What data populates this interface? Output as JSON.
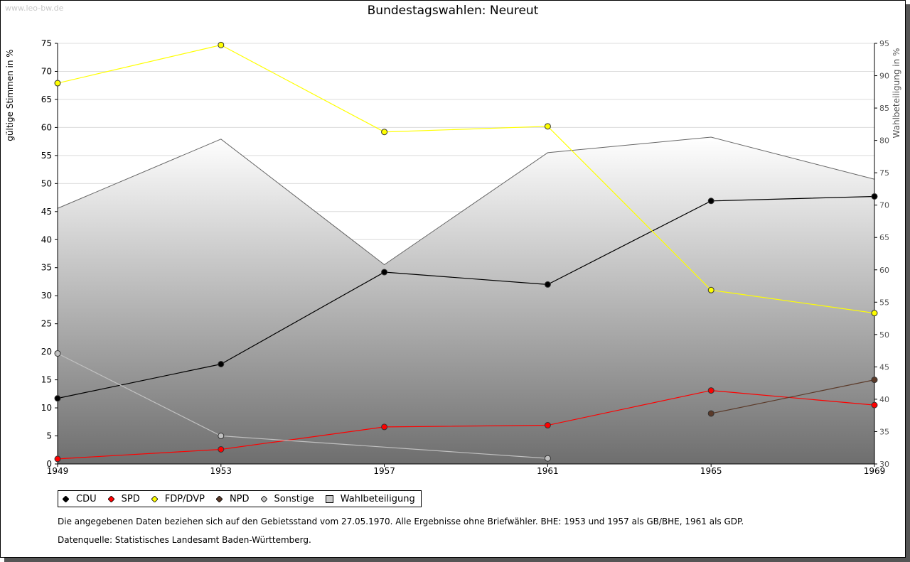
{
  "watermark": "www.leo-bw.de",
  "title": "Bundestagswahlen: Neureut",
  "chart_data": {
    "type": "line",
    "title": "Bundestagswahlen: Neureut",
    "x": [
      "1949",
      "1953",
      "1957",
      "1961",
      "1965",
      "1969"
    ],
    "ylabel": "gültige Stimmen in %",
    "ylim": [
      0,
      75
    ],
    "yticks": [
      "0",
      "5",
      "10",
      "15",
      "20",
      "25",
      "30",
      "35",
      "40",
      "45",
      "50",
      "55",
      "60",
      "65",
      "70",
      "75"
    ],
    "y2label": "Wahlbeteiligung in %",
    "y2lim": [
      30,
      95
    ],
    "y2ticks": [
      "30",
      "35",
      "40",
      "45",
      "50",
      "55",
      "60",
      "65",
      "70",
      "75",
      "80",
      "85",
      "90",
      "95"
    ],
    "grid": true,
    "series": [
      {
        "name": "CDU",
        "color": "#000000",
        "values": [
          11.7,
          17.8,
          34.2,
          32.0,
          46.9,
          47.7
        ]
      },
      {
        "name": "SPD",
        "color": "#ff0000",
        "values": [
          0.9,
          2.6,
          6.6,
          6.9,
          13.1,
          10.5
        ]
      },
      {
        "name": "FDP/DVP",
        "color": "#ffff00",
        "values": [
          67.9,
          74.7,
          59.2,
          60.2,
          31.0,
          26.9
        ]
      },
      {
        "name": "NPD",
        "color": "#5b3a29",
        "values": [
          null,
          null,
          null,
          null,
          9.0,
          15.0
        ]
      },
      {
        "name": "Sonstige",
        "color": "#c0c0c0",
        "values": [
          19.7,
          5.0,
          null,
          1.0,
          null,
          null
        ]
      }
    ],
    "area": {
      "name": "Wahlbeteiligung",
      "axis": "right",
      "values": [
        69.5,
        80.2,
        60.8,
        78.1,
        80.5,
        74.0
      ]
    },
    "legend": "bottom-left"
  },
  "legend_labels": [
    "CDU",
    "SPD",
    "FDP/DVP",
    "NPD",
    "Sonstige",
    "Wahlbeteiligung"
  ],
  "notes": {
    "line1": "Die angegebenen Daten beziehen sich auf den Gebietsstand vom 27.05.1970. Alle Ergebnisse ohne Briefwähler. BHE: 1953 und 1957 als GB/BHE, 1961 als GDP.",
    "line2": "Datenquelle: Statistisches Landesamt Baden-Württemberg."
  }
}
